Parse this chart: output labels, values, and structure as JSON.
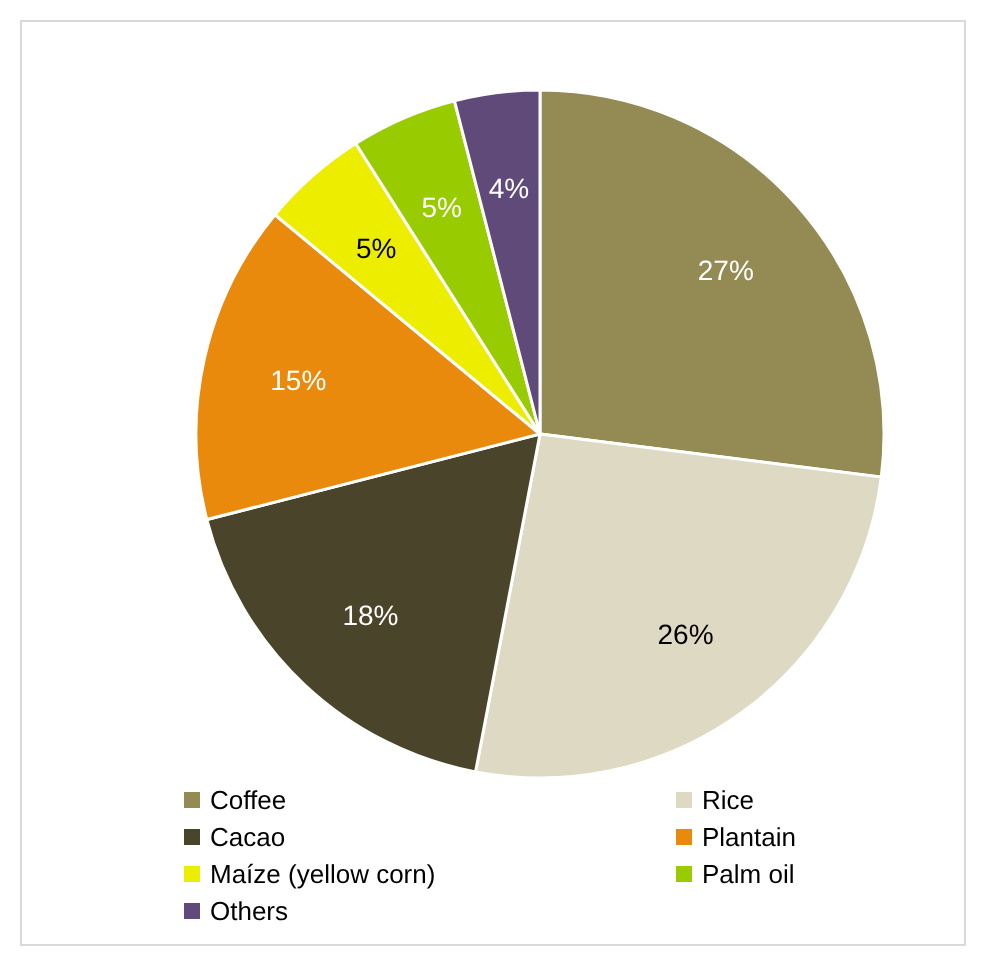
{
  "chart_data": {
    "type": "pie",
    "categories": [
      "Coffee",
      "Rice",
      "Cacao",
      "Plantain",
      "Maíze (yellow corn)",
      "Palm oil",
      "Others"
    ],
    "values": [
      27,
      26,
      18,
      15,
      5,
      5,
      4
    ],
    "colors": [
      "#948a54",
      "#ddd9c3",
      "#4a452a",
      "#e98a0c",
      "#eded00",
      "#99cc00",
      "#604a7a"
    ],
    "value_labels": [
      "27%",
      "26%",
      "18%",
      "15%",
      "5%",
      "5%",
      "4%"
    ],
    "legend": "bottom"
  }
}
